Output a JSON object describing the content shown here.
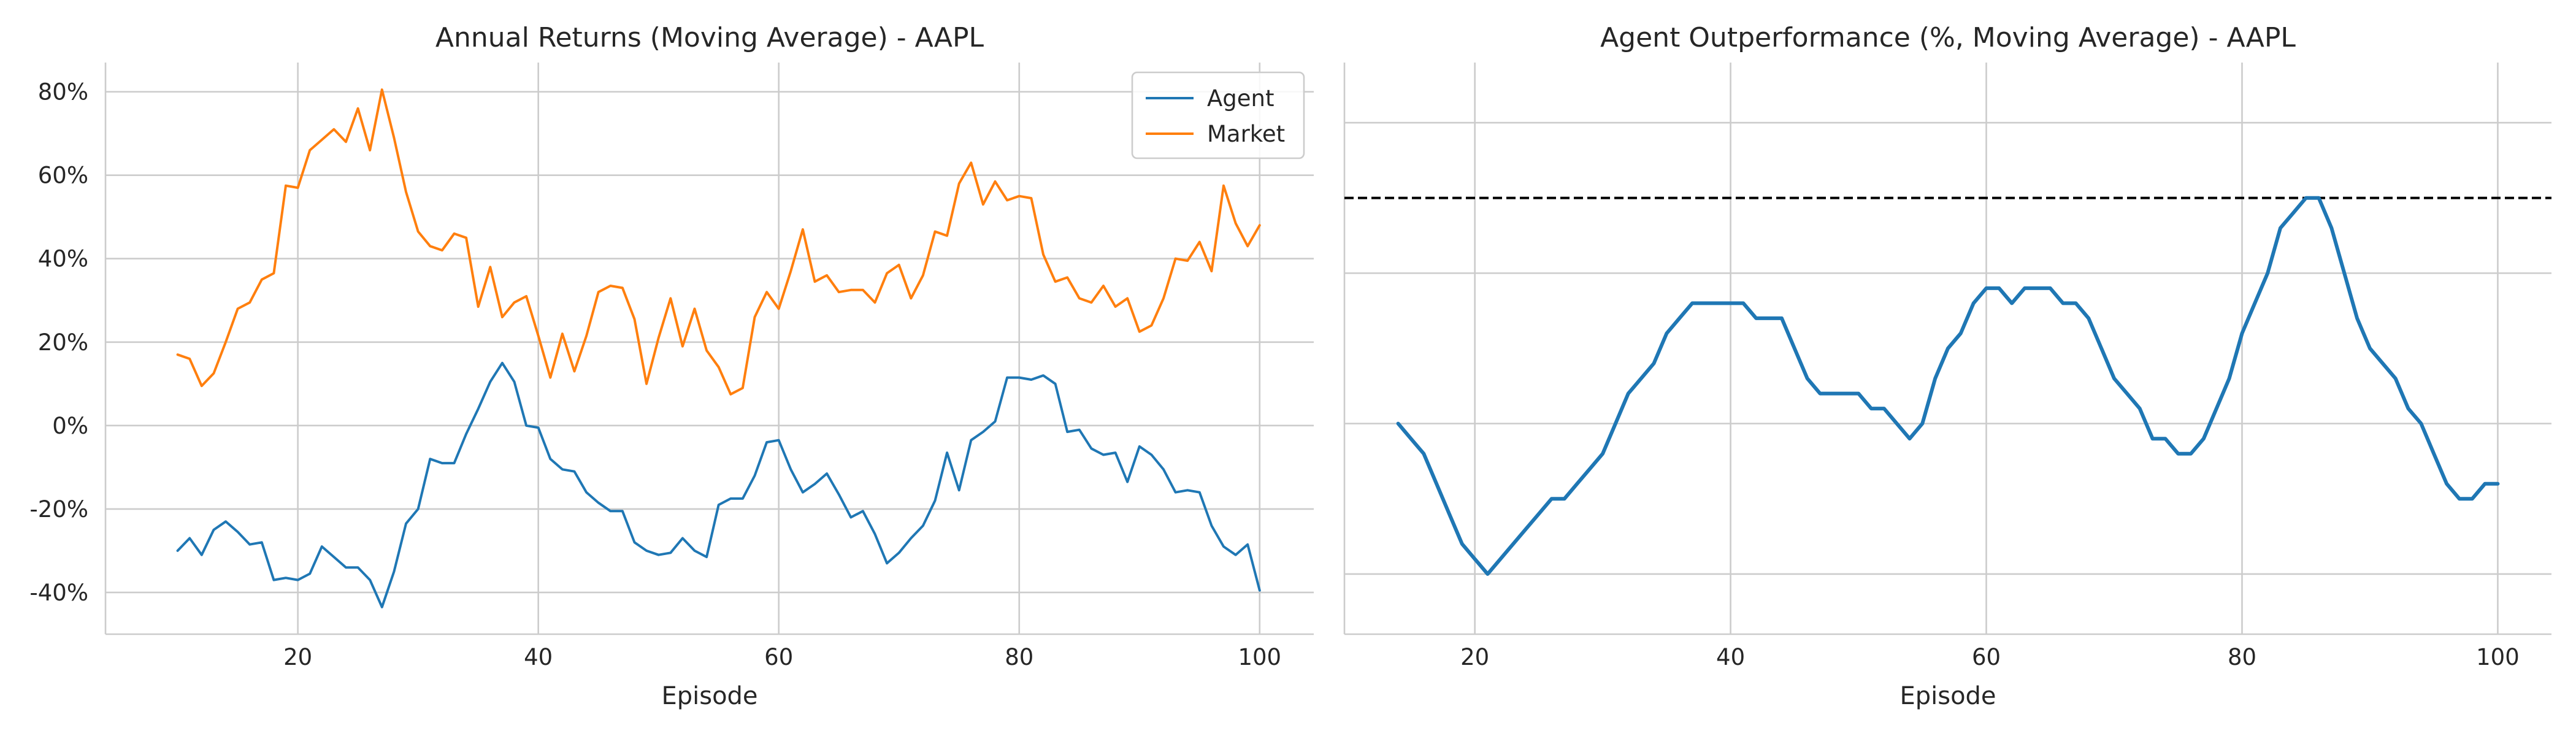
{
  "chart_data": [
    {
      "type": "line",
      "title": "Annual Returns (Moving Average) - AAPL",
      "xlabel": "Episode",
      "ylabel": "",
      "xlim": [
        4,
        104.5
      ],
      "ylim": [
        -50,
        87
      ],
      "xticks": [
        20,
        40,
        60,
        80,
        100
      ],
      "yticks": [
        -40,
        -20,
        0,
        20,
        40,
        60,
        80
      ],
      "ytick_labels": [
        "-40%",
        "-20%",
        "0%",
        "20%",
        "40%",
        "60%",
        "80%"
      ],
      "grid": true,
      "legend": "top-right",
      "x": [
        10,
        11,
        12,
        13,
        14,
        15,
        16,
        17,
        18,
        19,
        20,
        21,
        22,
        23,
        24,
        25,
        26,
        27,
        28,
        29,
        30,
        31,
        32,
        33,
        34,
        35,
        36,
        37,
        38,
        39,
        40,
        41,
        42,
        43,
        44,
        45,
        46,
        47,
        48,
        49,
        50,
        51,
        52,
        53,
        54,
        55,
        56,
        57,
        58,
        59,
        60,
        61,
        62,
        63,
        64,
        65,
        66,
        67,
        68,
        69,
        70,
        71,
        72,
        73,
        74,
        75,
        76,
        77,
        78,
        79,
        80,
        81,
        82,
        83,
        84,
        85,
        86,
        87,
        88,
        89,
        90,
        91,
        92,
        93,
        94,
        95,
        96,
        97,
        98,
        99,
        100
      ],
      "series": [
        {
          "name": "Agent",
          "color": "#1f77b4",
          "values": [
            -30,
            -27,
            -31,
            -25,
            -23,
            -25.5,
            -28.5,
            -28,
            -37,
            -36.5,
            -37,
            -35.5,
            -29,
            -31.5,
            -34,
            -34,
            -37,
            -43.5,
            -35,
            -23.5,
            -20,
            -8,
            -9,
            -9,
            -2,
            4,
            10.5,
            15,
            10.5,
            0,
            -0.5,
            -8,
            -10.5,
            -11,
            -16,
            -18.5,
            -20.5,
            -20.5,
            -28,
            -30,
            -31,
            -30.5,
            -27,
            -30,
            -31.5,
            -19,
            -17.5,
            -17.5,
            -12,
            -4,
            -3.5,
            -10.5,
            -16,
            -14,
            -11.5,
            -16.5,
            -22,
            -20.5,
            -26,
            -33,
            -30.5,
            -27,
            -24,
            -18,
            -6.5,
            -15.5,
            -3.5,
            -1.5,
            1,
            11.5,
            11.5,
            11,
            12,
            10,
            -1.5,
            -1,
            -5.5,
            -7,
            -6.5,
            -13.5,
            -5,
            -7,
            -10.5,
            -16,
            -15.5,
            -16,
            -24,
            -29,
            -31,
            -28.5,
            -39.5
          ]
        },
        {
          "name": "Market",
          "color": "#ff7f0e",
          "values": [
            17,
            16,
            9.5,
            12.5,
            20,
            28,
            29.5,
            35,
            36.5,
            57.5,
            57,
            66,
            68.5,
            71,
            68,
            76,
            66,
            80.5,
            69,
            56,
            46.5,
            43,
            42,
            46,
            45,
            28.5,
            38,
            26,
            29.5,
            31,
            21.5,
            11.5,
            22,
            13,
            21.5,
            32,
            33.5,
            33,
            25.5,
            10,
            21,
            30.5,
            19,
            28,
            18,
            14,
            7.5,
            9,
            26,
            32,
            28,
            37,
            47,
            34.5,
            36,
            32,
            32.5,
            32.5,
            29.5,
            36.5,
            38.5,
            30.5,
            36,
            46.5,
            45.5,
            58,
            63,
            53,
            58.5,
            54,
            55,
            54.5,
            41,
            34.5,
            35.5,
            30.5,
            29.5,
            33.5,
            28.5,
            30.5,
            22.5,
            24,
            30.5,
            40,
            39.5,
            44,
            37,
            57.5,
            48.5,
            43,
            48
          ]
        }
      ]
    },
    {
      "type": "line",
      "title": "Agent Outperformance (%, Moving Average) - AAPL",
      "xlabel": "Episode",
      "ylabel": "",
      "xlim": [
        9.8,
        104.2
      ],
      "ylim": [
        -8,
        68
      ],
      "xticks": [
        20,
        40,
        60,
        80,
        100
      ],
      "yticks": [
        0,
        20,
        40,
        60
      ],
      "grid": true,
      "reference_line": {
        "y": 50,
        "style": "dashed",
        "color": "#000000"
      },
      "x": [
        14,
        15,
        16,
        17,
        18,
        19,
        20,
        21,
        22,
        23,
        24,
        25,
        26,
        27,
        28,
        29,
        30,
        31,
        32,
        33,
        34,
        35,
        36,
        37,
        38,
        39,
        40,
        41,
        42,
        43,
        44,
        45,
        46,
        47,
        48,
        49,
        50,
        51,
        52,
        53,
        54,
        55,
        56,
        57,
        58,
        59,
        60,
        61,
        62,
        63,
        64,
        65,
        66,
        67,
        68,
        69,
        70,
        71,
        72,
        73,
        74,
        75,
        76,
        77,
        78,
        79,
        80,
        81,
        82,
        83,
        84,
        85,
        86,
        87,
        88,
        89,
        90,
        91,
        92,
        93,
        94,
        95,
        96,
        97,
        98,
        99,
        100
      ],
      "series": [
        {
          "name": "",
          "color": "#1f77b4",
          "values": [
            20,
            18,
            16,
            12,
            8,
            4,
            2,
            0,
            2,
            4,
            6,
            8,
            10,
            10,
            12,
            14,
            16,
            20,
            24,
            26,
            28,
            32,
            34,
            36,
            36,
            36,
            36,
            36,
            34,
            34,
            34,
            30,
            26,
            24,
            24,
            24,
            24,
            22,
            22,
            20,
            18,
            20,
            26,
            30,
            32,
            36,
            38,
            38,
            36,
            38,
            38,
            38,
            36,
            36,
            34,
            30,
            26,
            24,
            22,
            18,
            18,
            16,
            16,
            18,
            22,
            26,
            32,
            36,
            40,
            46,
            48,
            50,
            50,
            46,
            40,
            34,
            30,
            28,
            26,
            22,
            20,
            16,
            12,
            10,
            10,
            12,
            12
          ]
        }
      ]
    }
  ]
}
